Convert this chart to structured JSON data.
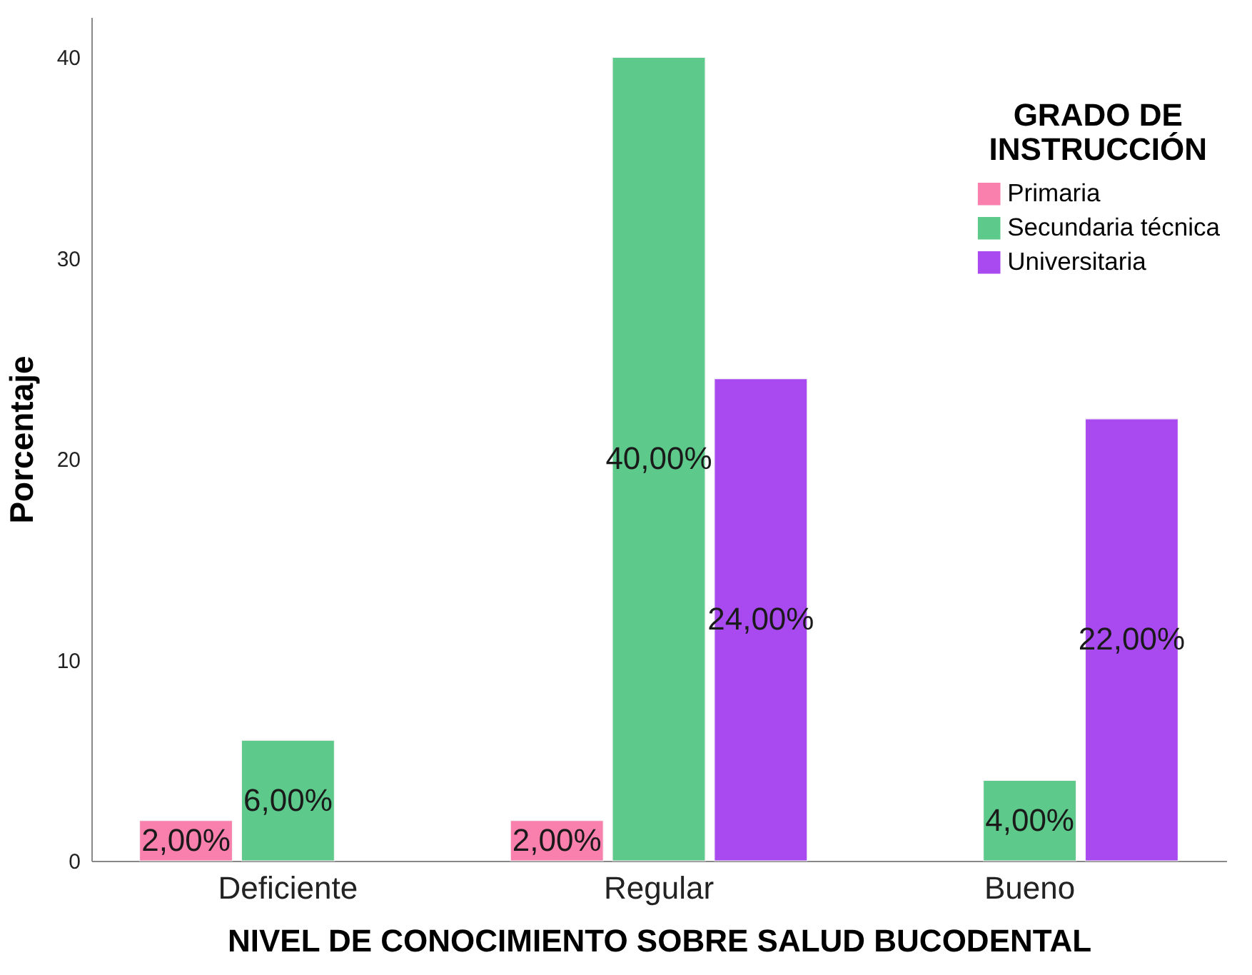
{
  "chart_data": {
    "type": "bar",
    "xlabel": "NIVEL DE CONOCIMIENTO SOBRE SALUD BUCODENTAL",
    "ylabel": "Porcentaje",
    "legend_title": "GRADO DE\nINSTRUCCIÓN",
    "categories": [
      "Deficiente",
      "Regular",
      "Bueno"
    ],
    "series": [
      {
        "name": "Primaria",
        "color": "#f97fac",
        "values": [
          2,
          2,
          null
        ],
        "value_labels": [
          "2,00%",
          "2,00%",
          null
        ]
      },
      {
        "name": "Secundaria técnica",
        "color": "#5dc98b",
        "values": [
          6,
          40,
          4
        ],
        "value_labels": [
          "6,00%",
          "40,00%",
          "4,00%"
        ]
      },
      {
        "name": "Universitaria",
        "color": "#a94af0",
        "values": [
          null,
          24,
          22
        ],
        "value_labels": [
          null,
          "24,00%",
          "22,00%"
        ]
      }
    ],
    "ylim": [
      0,
      42
    ],
    "yticks": [
      0,
      10,
      20,
      30,
      40
    ],
    "grid": false,
    "legend": "top right"
  }
}
